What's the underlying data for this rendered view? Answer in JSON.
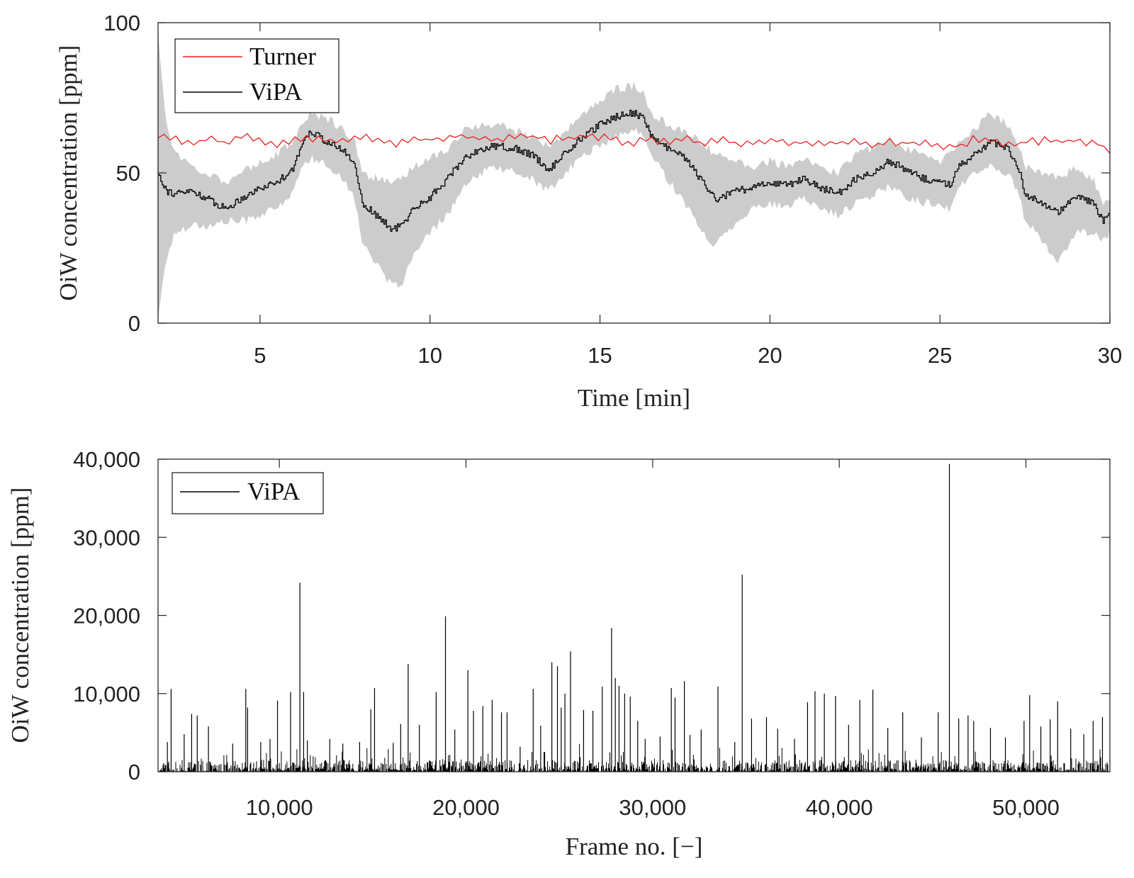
{
  "chart_data": [
    {
      "type": "line",
      "xlabel": "Time [min]",
      "ylabel": "OiW concentration [ppm]",
      "xlim": [
        2,
        30
      ],
      "ylim": [
        0,
        100
      ],
      "xticks": [
        5,
        10,
        15,
        20,
        25,
        30
      ],
      "yticks": [
        0,
        50,
        100
      ],
      "xtick_labels": [
        "5",
        "10",
        "15",
        "20",
        "25",
        "30"
      ],
      "ytick_labels": [
        "0",
        "50",
        "100"
      ],
      "legend": {
        "location": "top-left",
        "entries": [
          "Turner",
          "ViPA"
        ]
      },
      "series": [
        {
          "name": "Turner",
          "color": "#e8211f",
          "x": [
            2,
            2.5,
            3,
            3.5,
            4,
            4.5,
            5,
            5.5,
            6,
            6.5,
            7,
            7.5,
            8,
            8.5,
            9,
            9.5,
            10,
            10.5,
            11,
            11.5,
            12,
            12.5,
            13,
            13.5,
            14,
            14.5,
            15,
            15.5,
            16,
            16.5,
            17,
            17.5,
            18,
            18.5,
            19,
            19.5,
            20,
            20.5,
            21,
            21.5,
            22,
            22.5,
            23,
            23.5,
            24,
            24.5,
            25,
            25.5,
            26,
            26.5,
            27,
            27.5,
            28,
            28.5,
            29,
            29.5,
            30
          ],
          "values": [
            62,
            61,
            60,
            61,
            60,
            62,
            61,
            60,
            61,
            62,
            61,
            60,
            63,
            61,
            60,
            61,
            61,
            62,
            62,
            61,
            61,
            62,
            62,
            61,
            61,
            62,
            62,
            61,
            60,
            61,
            61,
            61,
            60,
            61,
            60,
            60,
            61,
            60,
            60,
            60,
            60,
            60,
            59,
            60,
            60,
            60,
            59,
            59,
            61,
            61,
            60,
            60,
            61,
            60,
            61,
            60,
            58
          ]
        },
        {
          "name": "ViPA",
          "color": "#000000",
          "x": [
            2,
            2.25,
            2.5,
            3,
            3.5,
            4,
            4.5,
            5,
            5.5,
            6,
            6.3,
            6.5,
            7,
            7.5,
            7.8,
            8,
            8.5,
            8.9,
            9.2,
            9.5,
            10,
            10.5,
            11,
            11.5,
            12,
            12.5,
            13,
            13.5,
            14,
            14.5,
            15,
            15.5,
            16,
            16.3,
            16.5,
            17,
            17.5,
            18,
            18.4,
            19,
            19.5,
            20,
            20.5,
            21,
            21.5,
            22,
            22.5,
            23,
            23.5,
            24,
            24.5,
            25,
            25.3,
            25.5,
            26,
            26.5,
            27,
            27.3,
            27.5,
            28,
            28.5,
            29,
            29.5,
            29.8,
            30
          ],
          "values": [
            50,
            44,
            43,
            44,
            41,
            38,
            42,
            45,
            47,
            52,
            62,
            64,
            60,
            57,
            52,
            40,
            35,
            31,
            33,
            38,
            42,
            48,
            55,
            58,
            59,
            58,
            56,
            51,
            57,
            62,
            66,
            69,
            70,
            68,
            62,
            58,
            55,
            47,
            41,
            44,
            45,
            47,
            46,
            48,
            45,
            43,
            48,
            50,
            54,
            51,
            48,
            47,
            46,
            52,
            56,
            60,
            58,
            52,
            43,
            40,
            37,
            42,
            40,
            34,
            37
          ]
        },
        {
          "name": "ViPA uncertainty band (lower)",
          "color": "#cccccc",
          "x": [
            2,
            2.25,
            2.5,
            3,
            3.5,
            4,
            4.5,
            5,
            5.5,
            6,
            6.3,
            6.5,
            7,
            7.5,
            7.8,
            8,
            8.5,
            8.9,
            9.2,
            9.5,
            10,
            10.5,
            11,
            11.5,
            12,
            12.5,
            13,
            13.5,
            14,
            14.5,
            15,
            15.5,
            16,
            16.3,
            16.5,
            17,
            17.5,
            18,
            18.4,
            19,
            19.5,
            20,
            20.5,
            21,
            21.5,
            22,
            22.5,
            23,
            23.5,
            24,
            24.5,
            25,
            25.3,
            25.5,
            26,
            26.5,
            27,
            27.3,
            27.5,
            28,
            28.5,
            29,
            29.5,
            29.8,
            30
          ],
          "values": [
            2,
            22,
            30,
            33,
            32,
            34,
            34,
            36,
            38,
            44,
            54,
            55,
            52,
            48,
            40,
            28,
            18,
            12,
            14,
            22,
            30,
            36,
            45,
            50,
            52,
            50,
            48,
            44,
            50,
            56,
            59,
            62,
            64,
            62,
            56,
            48,
            40,
            30,
            26,
            34,
            38,
            40,
            38,
            42,
            38,
            36,
            40,
            42,
            46,
            42,
            40,
            40,
            38,
            44,
            50,
            52,
            50,
            44,
            34,
            28,
            20,
            30,
            30,
            28,
            30
          ]
        },
        {
          "name": "ViPA uncertainty band (upper)",
          "color": "#cccccc",
          "x": [
            2,
            2.25,
            2.5,
            3,
            3.5,
            4,
            4.5,
            5,
            5.5,
            6,
            6.3,
            6.5,
            7,
            7.5,
            7.8,
            8,
            8.5,
            8.9,
            9.2,
            9.5,
            10,
            10.5,
            11,
            11.5,
            12,
            12.5,
            13,
            13.5,
            14,
            14.5,
            15,
            15.5,
            16,
            16.3,
            16.5,
            17,
            17.5,
            18,
            18.4,
            19,
            19.5,
            20,
            20.5,
            21,
            21.5,
            22,
            22.5,
            23,
            23.5,
            24,
            24.5,
            25,
            25.3,
            25.5,
            26,
            26.5,
            27,
            27.3,
            27.5,
            28,
            28.5,
            29,
            29.5,
            29.8,
            30
          ],
          "values": [
            96,
            66,
            57,
            52,
            50,
            47,
            50,
            54,
            56,
            61,
            68,
            70,
            68,
            64,
            60,
            50,
            48,
            46,
            48,
            52,
            55,
            58,
            64,
            66,
            66,
            64,
            62,
            58,
            64,
            70,
            74,
            78,
            79,
            76,
            70,
            66,
            64,
            60,
            56,
            54,
            52,
            54,
            52,
            54,
            52,
            50,
            56,
            58,
            62,
            58,
            56,
            54,
            56,
            60,
            64,
            70,
            66,
            60,
            52,
            50,
            48,
            52,
            48,
            40,
            42
          ]
        }
      ]
    },
    {
      "type": "line",
      "xlabel": "Frame no. [−]",
      "ylabel": "OiW concentration [ppm]",
      "xlim": [
        3500,
        54500
      ],
      "ylim": [
        0,
        40000
      ],
      "xticks": [
        10000,
        20000,
        30000,
        40000,
        50000
      ],
      "yticks": [
        0,
        10000,
        20000,
        30000,
        40000
      ],
      "xtick_labels": [
        "10,000",
        "20,000",
        "30,000",
        "40,000",
        "50,000"
      ],
      "ytick_labels": [
        "0",
        "10,000",
        "20,000",
        "30,000",
        "40,000"
      ],
      "legend": {
        "location": "top-left",
        "entries": [
          "ViPA"
        ]
      },
      "series": [
        {
          "name": "ViPA",
          "color": "#000000",
          "style": "spikes",
          "x": [
            4000,
            4200,
            4900,
            5300,
            5600,
            6200,
            7500,
            8200,
            8300,
            9000,
            9500,
            9900,
            10600,
            11100,
            11300,
            11500,
            12700,
            13400,
            14300,
            14900,
            15100,
            16100,
            16500,
            16900,
            17500,
            18400,
            18900,
            19400,
            20100,
            20400,
            20900,
            21400,
            21900,
            22200,
            22900,
            23600,
            24000,
            24600,
            24900,
            25100,
            25300,
            25600,
            26300,
            26800,
            27300,
            27800,
            28000,
            28200,
            28500,
            28800,
            29200,
            29600,
            30400,
            31000,
            31200,
            31700,
            32000,
            32600,
            33500,
            34400,
            34800,
            35300,
            36100,
            36700,
            37600,
            38300,
            38700,
            39200,
            39800,
            40500,
            41100,
            41800,
            42600,
            43400,
            44400,
            45300,
            45900,
            46400,
            46900,
            47200,
            48100,
            48900,
            49900,
            50200,
            50800,
            51300,
            51700,
            52400,
            53100,
            53600,
            54100
          ],
          "values": [
            3800,
            10600,
            4800,
            7400,
            7200,
            5800,
            3600,
            10600,
            8200,
            3800,
            4200,
            9100,
            10200,
            24200,
            10200,
            4000,
            4200,
            3600,
            3800,
            8000,
            10700,
            3700,
            6100,
            13800,
            6000,
            10200,
            19900,
            5400,
            13000,
            7800,
            8400,
            9200,
            7600,
            7600,
            3200,
            10600,
            5900,
            14000,
            13500,
            8200,
            10000,
            15400,
            7900,
            7800,
            10900,
            18400,
            12000,
            11000,
            10000,
            9600,
            6500,
            4200,
            4500,
            10700,
            9500,
            11600,
            4700,
            5400,
            10900,
            3800,
            25200,
            6800,
            7000,
            5500,
            4200,
            8900,
            10300,
            10000,
            9700,
            6000,
            9200,
            10500,
            5600,
            7600,
            4400,
            7600,
            39400,
            6800,
            7200,
            6500,
            5600,
            4400,
            6500,
            9800,
            5800,
            6700,
            9000,
            5500,
            4800,
            6500,
            7000
          ]
        }
      ]
    }
  ]
}
